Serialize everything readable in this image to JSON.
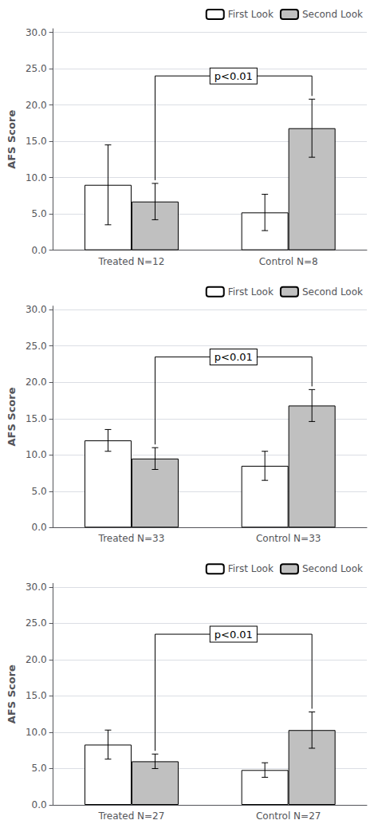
{
  "chart_data": [
    {
      "type": "bar",
      "categories": [
        "Treated N=12",
        "Control N=8"
      ],
      "series": [
        {
          "name": "First Look",
          "color": "#ffffff",
          "values": [
            9.0,
            5.2
          ],
          "errors": [
            5.5,
            2.5
          ]
        },
        {
          "name": "Second Look",
          "color": "#c0c0c0",
          "values": [
            6.7,
            16.8
          ],
          "errors": [
            2.5,
            4.0
          ]
        }
      ],
      "ylabel": "AFS Score",
      "ylim": [
        0,
        30.5
      ],
      "yticks": [
        {
          "value": 0.0,
          "label": "0.0"
        },
        {
          "value": 5.0,
          "label": "5.0"
        },
        {
          "value": 10.0,
          "label": "10.0"
        },
        {
          "value": 15.0,
          "label": "15.0"
        },
        {
          "value": 20.0,
          "label": "20.0"
        },
        {
          "value": 25.0,
          "label": "25.0"
        },
        {
          "value": 30.0,
          "label": "30.0"
        }
      ],
      "grid": true,
      "legend": "upper right",
      "annotations": [
        {
          "text": "p<0.01",
          "y": 24.0
        }
      ]
    },
    {
      "type": "bar",
      "categories": [
        "Treated N=33",
        "Control N=33"
      ],
      "series": [
        {
          "name": "First Look",
          "color": "#ffffff",
          "values": [
            12.0,
            8.5
          ],
          "errors": [
            1.5,
            2.0
          ]
        },
        {
          "name": "Second Look",
          "color": "#c0c0c0",
          "values": [
            9.5,
            16.8
          ],
          "errors": [
            1.5,
            2.2
          ]
        }
      ],
      "ylabel": "AFS Score",
      "ylim": [
        0,
        30.5
      ],
      "yticks": [
        {
          "value": 0.0,
          "label": "0.0"
        },
        {
          "value": 5.0,
          "label": "5.0"
        },
        {
          "value": 10.0,
          "label": "10.0"
        },
        {
          "value": 15.0,
          "label": "15.0"
        },
        {
          "value": 20.0,
          "label": "20.0"
        },
        {
          "value": 25.0,
          "label": "25.0"
        },
        {
          "value": 30.0,
          "label": "30.0"
        }
      ],
      "grid": true,
      "legend": "upper right",
      "annotations": [
        {
          "text": "p<0.01",
          "y": 23.5
        }
      ]
    },
    {
      "type": "bar",
      "categories": [
        "Treated N=27",
        "Control N=27"
      ],
      "series": [
        {
          "name": "First Look",
          "color": "#ffffff",
          "values": [
            8.3,
            4.8
          ],
          "errors": [
            2.0,
            1.0
          ]
        },
        {
          "name": "Second Look",
          "color": "#c0c0c0",
          "values": [
            6.0,
            10.3
          ],
          "errors": [
            1.0,
            2.5
          ]
        }
      ],
      "ylabel": "AFS Score",
      "ylim": [
        0,
        30.5
      ],
      "yticks": [
        {
          "value": 0.0,
          "label": "0.0"
        },
        {
          "value": 5.0,
          "label": "5.0"
        },
        {
          "value": 10.0,
          "label": "10.0"
        },
        {
          "value": 15.0,
          "label": "15.0"
        },
        {
          "value": 20.0,
          "label": "20.0"
        },
        {
          "value": 25.0,
          "label": "25.0"
        },
        {
          "value": 30.0,
          "label": "30.0"
        }
      ],
      "grid": true,
      "legend": "upper right",
      "annotations": [
        {
          "text": "p<0.01",
          "y": 23.5
        }
      ]
    }
  ]
}
